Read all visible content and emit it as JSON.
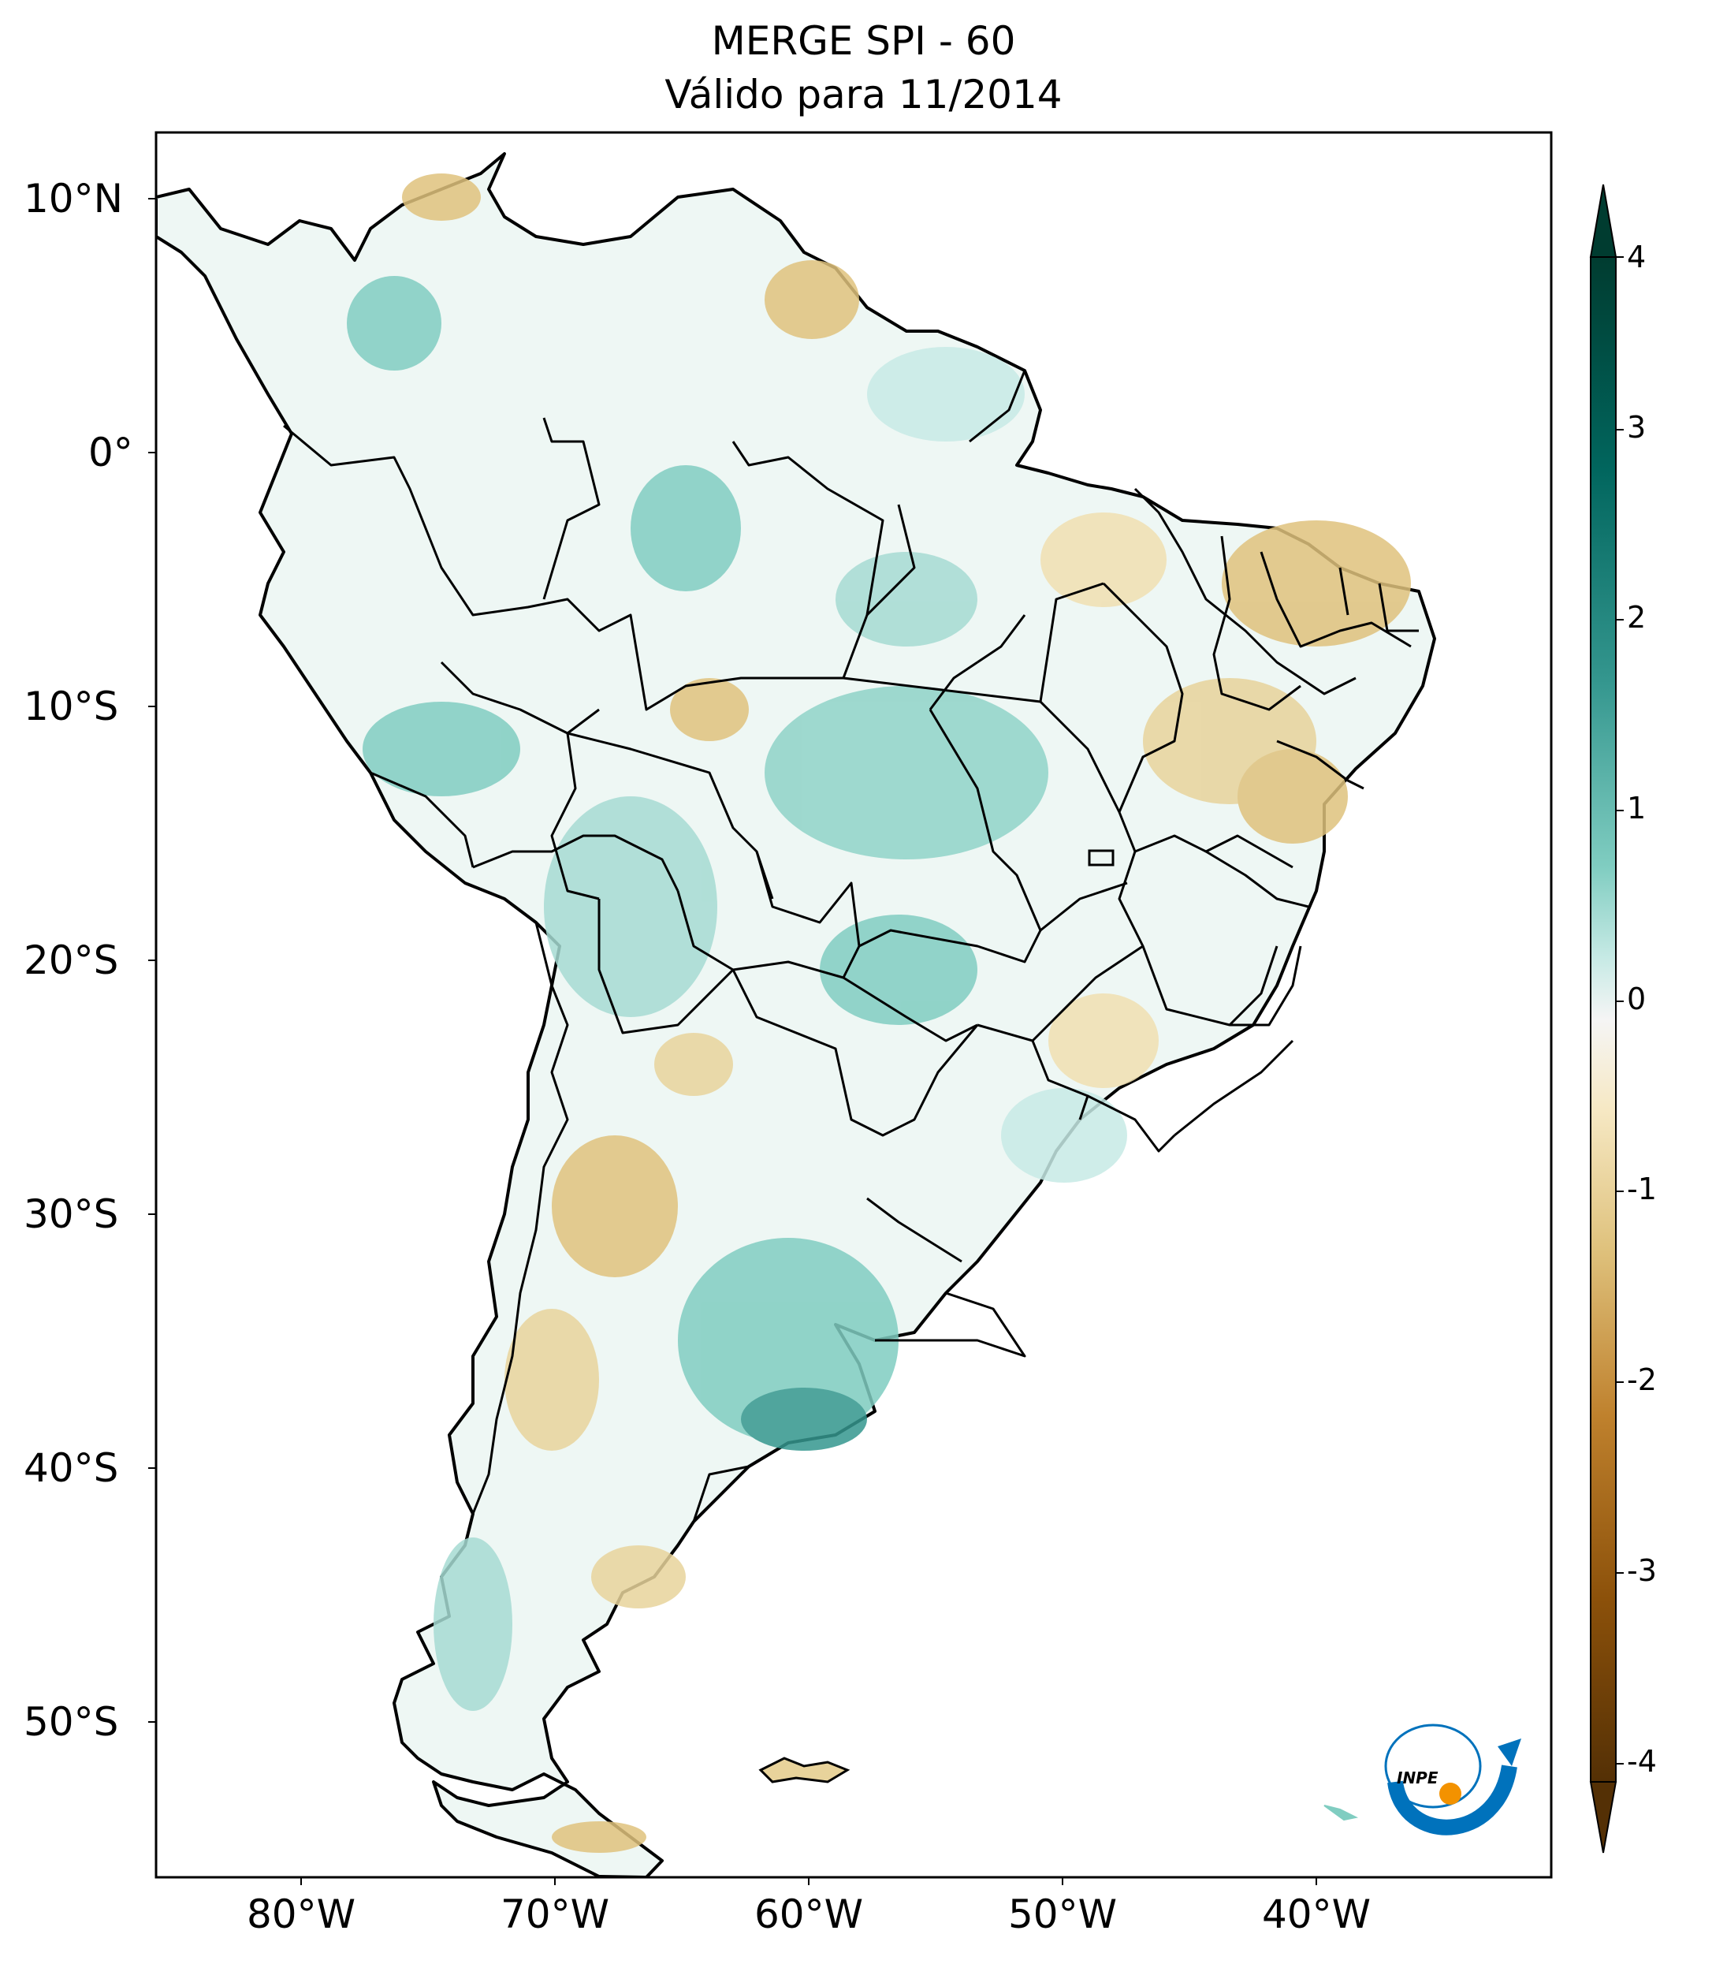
{
  "title": {
    "line1": "MERGE   SPI - 60",
    "line2": "Válido para 11/2014"
  },
  "lat_labels": [
    "10°N",
    "0°",
    "10°S",
    "20°S",
    "30°S",
    "40°S",
    "50°S"
  ],
  "lon_labels": [
    "80°W",
    "70°W",
    "60°W",
    "50°W",
    "40°W"
  ],
  "colorbar": {
    "ticks": [
      "4",
      "3",
      "2",
      "1",
      "0",
      "-1",
      "-2",
      "-3",
      "-4"
    ],
    "colors": {
      "top": "#003c30",
      "upper": "#35978f",
      "light_upper": "#c7eae5",
      "mid": "#f5f5f5",
      "light_lower": "#f6e8c3",
      "lower": "#bf812d",
      "bottom": "#543005"
    }
  },
  "logo": {
    "text": "INPE",
    "accent": "#0072bc",
    "dot": "#f39200"
  }
}
